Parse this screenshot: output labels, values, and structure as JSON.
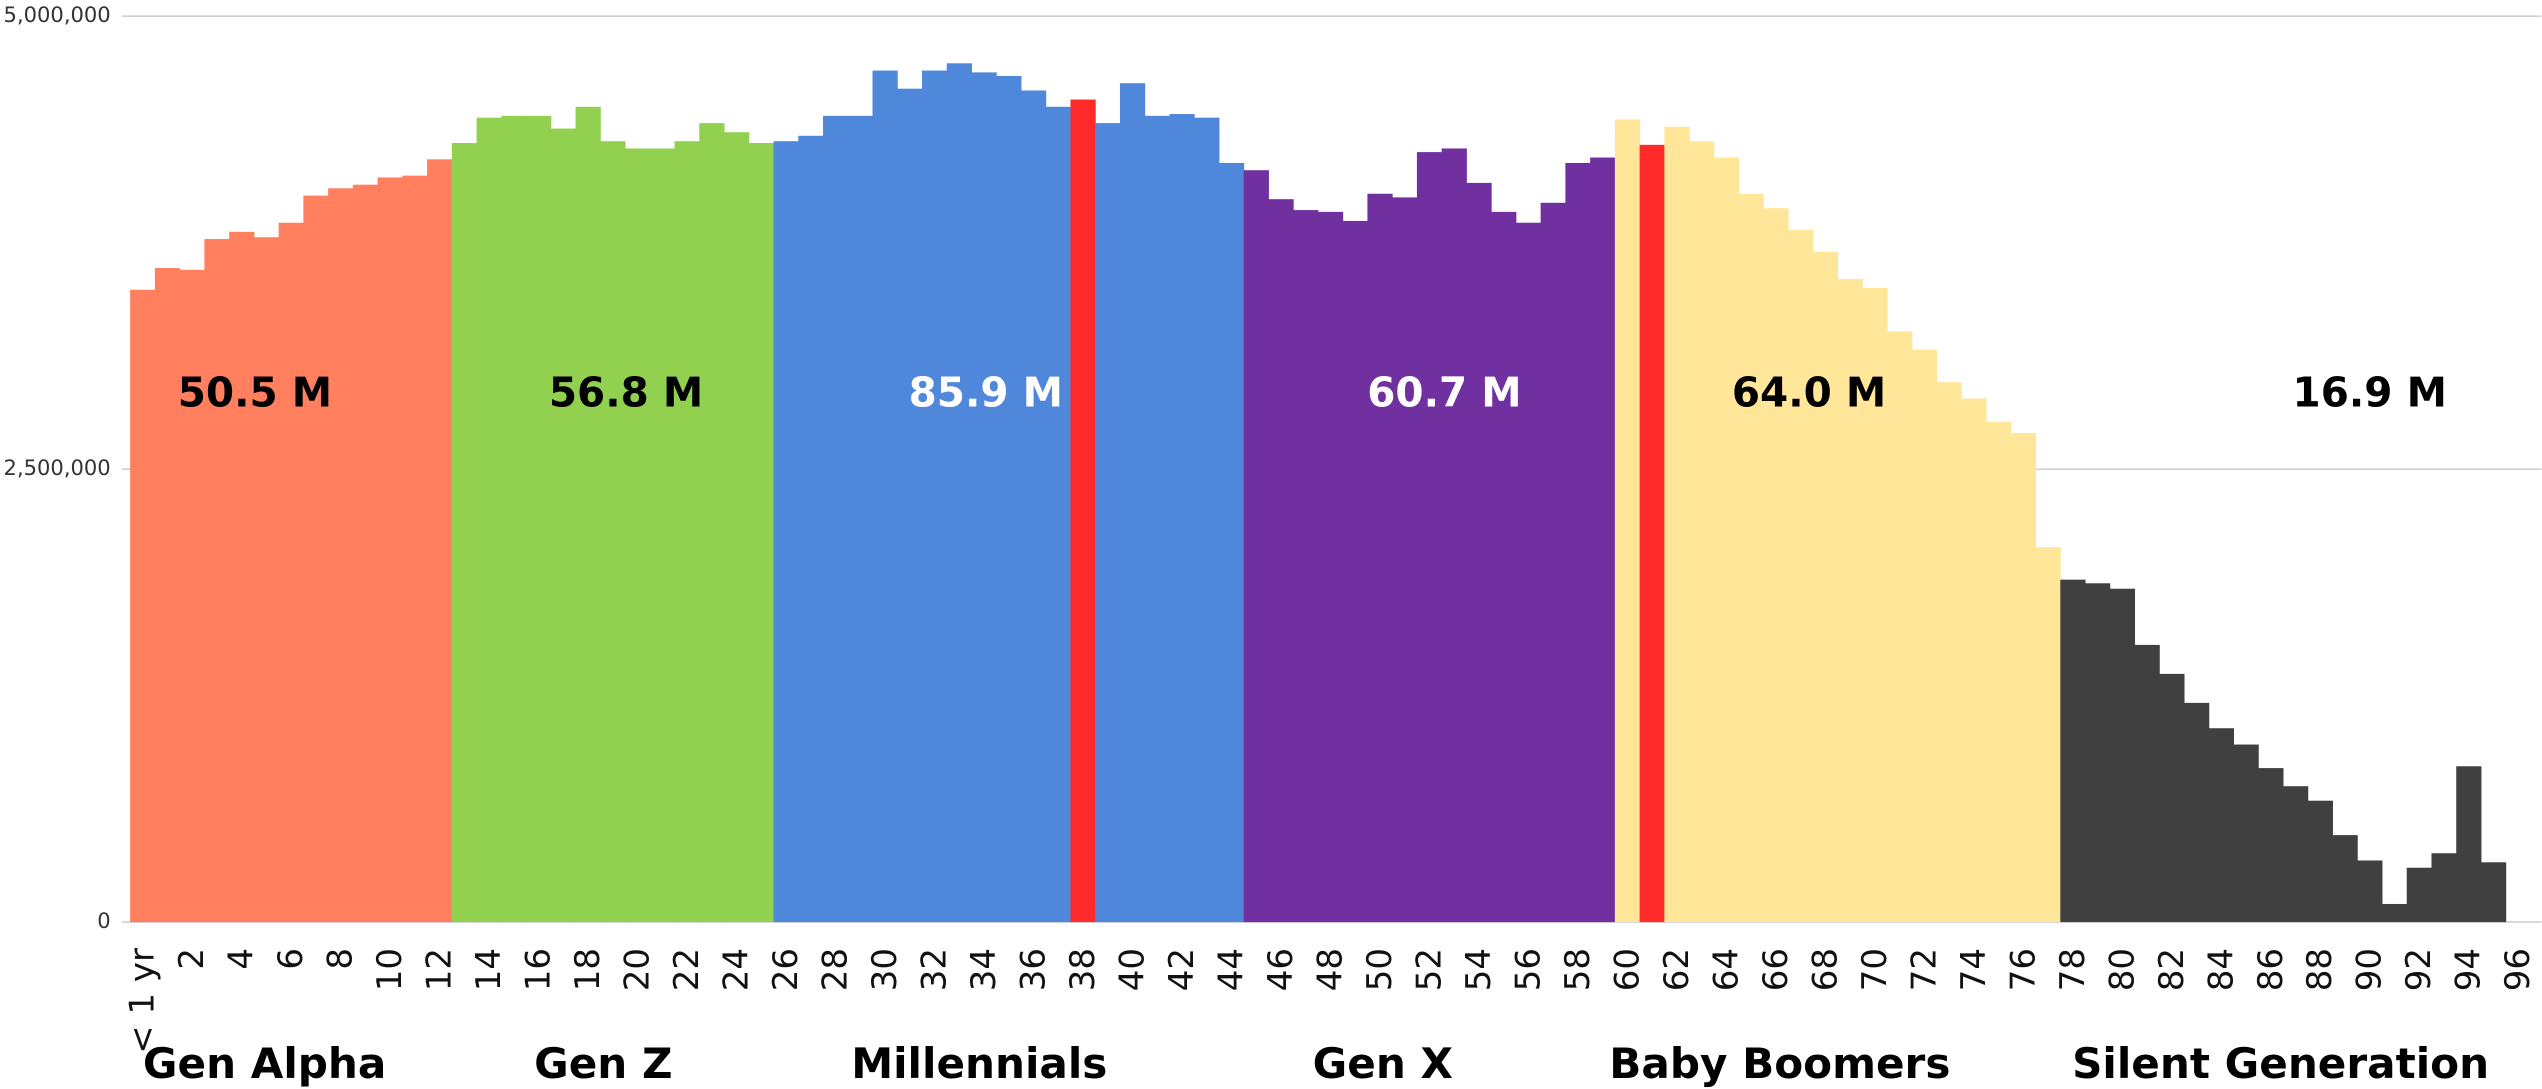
{
  "chart_data": {
    "type": "bar",
    "categories": [
      "< 1 yr",
      null,
      "2",
      null,
      "4",
      null,
      "6",
      null,
      "8",
      null,
      "10",
      null,
      "12",
      null,
      "14",
      null,
      "16",
      null,
      "18",
      null,
      "20",
      null,
      "22",
      null,
      "24",
      null,
      "26",
      null,
      "28",
      null,
      "30",
      null,
      "32",
      null,
      "34",
      null,
      "36",
      null,
      "38",
      null,
      "40",
      null,
      "42",
      null,
      "44",
      null,
      "46",
      null,
      "48",
      null,
      "50",
      null,
      "52",
      null,
      "54",
      null,
      "56",
      null,
      "58",
      null,
      "60",
      null,
      "62",
      null,
      "64",
      null,
      "66",
      null,
      "68",
      null,
      "70",
      null,
      "72",
      null,
      "74",
      null,
      "76",
      null,
      "78",
      null,
      "80",
      null,
      "82",
      null,
      "84",
      null,
      "86",
      null,
      "88",
      null,
      "90",
      null,
      "92",
      null,
      "94",
      null,
      "96"
    ],
    "values": [
      3490000,
      3610000,
      3600000,
      3770000,
      3810000,
      3780000,
      3860000,
      4010000,
      4050000,
      4070000,
      4110000,
      4120000,
      4210000,
      4300000,
      4440000,
      4450000,
      4450000,
      4380000,
      4500000,
      4310000,
      4270000,
      4270000,
      4310000,
      4410000,
      4360000,
      4300000,
      4310000,
      4340000,
      4450000,
      4450000,
      4700000,
      4600000,
      4700000,
      4740000,
      4690000,
      4670000,
      4590000,
      4500000,
      4540000,
      4410000,
      4630000,
      4450000,
      4460000,
      4440000,
      4190000,
      4150000,
      3990000,
      3930000,
      3920000,
      3870000,
      4020000,
      4000000,
      4250000,
      4270000,
      4080000,
      3920000,
      3860000,
      3970000,
      4190000,
      4220000,
      4430000,
      4290000,
      4390000,
      4310000,
      4220000,
      4020000,
      3940000,
      3820000,
      3700000,
      3550000,
      3500000,
      3260000,
      3160000,
      2980000,
      2890000,
      2760000,
      2700000,
      2070000,
      1890000,
      1870000,
      1840000,
      1530000,
      1370000,
      1210000,
      1070000,
      980000,
      850000,
      750000,
      670000,
      480000,
      340000,
      100000,
      300000,
      380000,
      860000,
      330000,
      null
    ],
    "colors": [
      "#ff7f5f",
      "#ff7f5f",
      "#ff7f5f",
      "#ff7f5f",
      "#ff7f5f",
      "#ff7f5f",
      "#ff7f5f",
      "#ff7f5f",
      "#ff7f5f",
      "#ff7f5f",
      "#ff7f5f",
      "#ff7f5f",
      "#ff7f5f",
      "#92d050",
      "#92d050",
      "#92d050",
      "#92d050",
      "#92d050",
      "#92d050",
      "#92d050",
      "#92d050",
      "#92d050",
      "#92d050",
      "#92d050",
      "#92d050",
      "#92d050",
      "#4f87db",
      "#4f87db",
      "#4f87db",
      "#4f87db",
      "#4f87db",
      "#4f87db",
      "#4f87db",
      "#4f87db",
      "#4f87db",
      "#4f87db",
      "#4f87db",
      "#4f87db",
      "#ff2a2a",
      "#4f87db",
      "#4f87db",
      "#4f87db",
      "#4f87db",
      "#4f87db",
      "#4f87db",
      "#7030a0",
      "#7030a0",
      "#7030a0",
      "#7030a0",
      "#7030a0",
      "#7030a0",
      "#7030a0",
      "#7030a0",
      "#7030a0",
      "#7030a0",
      "#7030a0",
      "#7030a0",
      "#7030a0",
      "#7030a0",
      "#7030a0",
      "#ffe699",
      "#ff2a2a",
      "#ffe699",
      "#ffe699",
      "#ffe699",
      "#ffe699",
      "#ffe699",
      "#ffe699",
      "#ffe699",
      "#ffe699",
      "#ffe699",
      "#ffe699",
      "#ffe699",
      "#ffe699",
      "#ffe699",
      "#ffe699",
      "#ffe699",
      "#ffe699",
      "#404040",
      "#404040",
      "#404040",
      "#404040",
      "#404040",
      "#404040",
      "#404040",
      "#404040",
      "#404040",
      "#404040",
      "#404040",
      "#404040",
      "#404040",
      "#404040",
      "#404040",
      "#404040",
      "#404040",
      "#404040",
      "#404040"
    ],
    "ylim": [
      0,
      5000000
    ],
    "yticks": [
      0,
      {
        "value": 2500000,
        "label": "2,500,000"
      },
      {
        "value": 5000000,
        "label": "5,000,000"
      }
    ],
    "grid": true,
    "groups": [
      {
        "name": "Gen Alpha",
        "label": "50.5 M"
      },
      {
        "name": "Gen Z",
        "label": "56.8 M"
      },
      {
        "name": "Millennials",
        "label": "85.9 M"
      },
      {
        "name": "Gen X",
        "label": "60.7 M"
      },
      {
        "name": "Baby Boomers",
        "label": "64.0 M"
      },
      {
        "name": "Silent Generation",
        "label": "16.9 M"
      }
    ]
  }
}
